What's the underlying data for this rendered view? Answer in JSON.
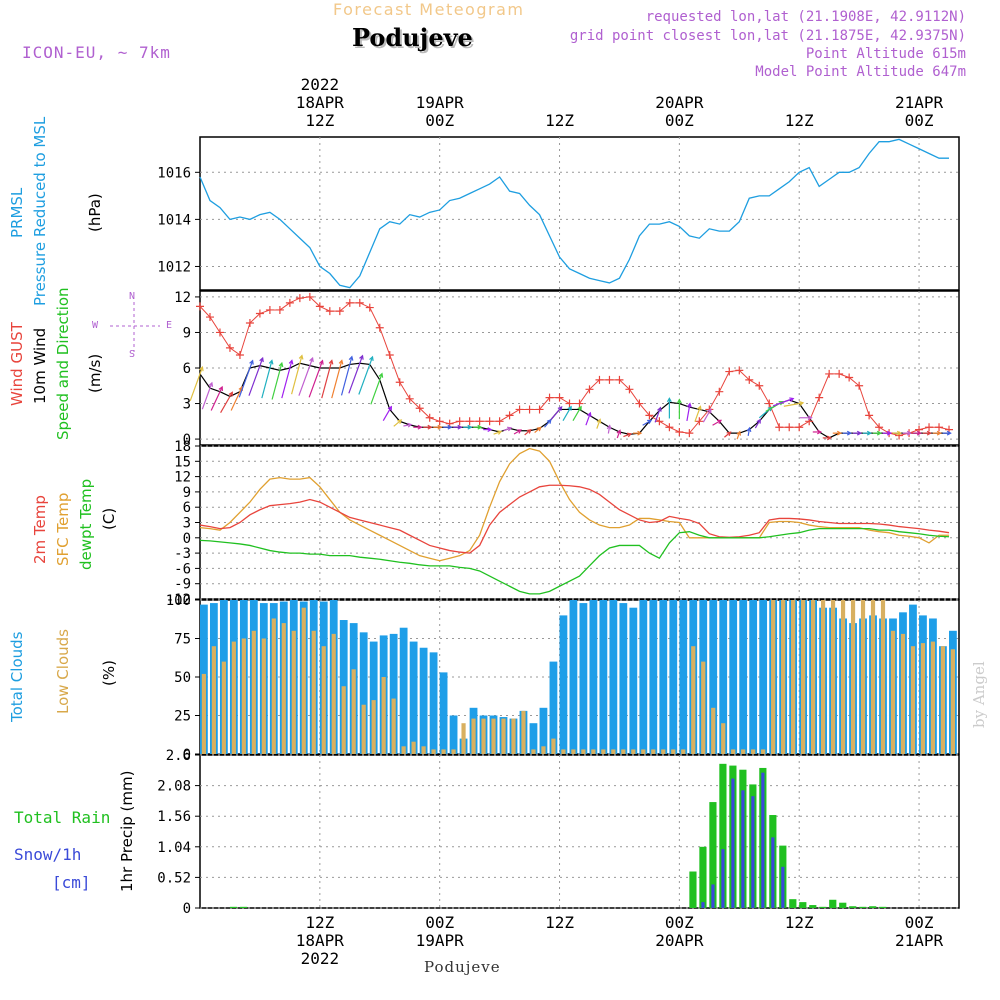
{
  "header": {
    "subtitle": "Forecast Meteogram",
    "location": "Podujeve",
    "model": "ICON-EU, ~ 7km",
    "requested": "requested lon,lat (21.1908E, 42.9112N)",
    "gridpoint": "grid point closest lon,lat (21.1875E, 42.9375N)",
    "point_alt": "Point Altitude 615m",
    "model_alt": "Model Point Altitude 647m",
    "footer_location": "Podujeve",
    "watermark": "by Angel"
  },
  "time_axis": {
    "top_labels": [
      {
        "t": 12,
        "lines": [
          "2022",
          "18APR",
          "12Z"
        ]
      },
      {
        "t": 24,
        "lines": [
          "19APR",
          "00Z"
        ]
      },
      {
        "t": 36,
        "lines": [
          "12Z"
        ]
      },
      {
        "t": 48,
        "lines": [
          "20APR",
          "00Z"
        ]
      },
      {
        "t": 60,
        "lines": [
          "12Z"
        ]
      },
      {
        "t": 72,
        "lines": [
          "21APR",
          "00Z"
        ]
      }
    ],
    "bottom_labels": [
      {
        "t": 12,
        "lines": [
          "12Z",
          "18APR",
          "2022"
        ]
      },
      {
        "t": 24,
        "lines": [
          "00Z",
          "19APR"
        ]
      },
      {
        "t": 36,
        "lines": [
          "12Z"
        ]
      },
      {
        "t": 48,
        "lines": [
          "00Z",
          "20APR"
        ]
      },
      {
        "t": 60,
        "lines": [
          "12Z"
        ]
      },
      {
        "t": 72,
        "lines": [
          "00Z",
          "21APR"
        ]
      }
    ]
  },
  "labels": {
    "pressure": [
      "PRMSL",
      "Pressure Reduced to MSL"
    ],
    "pressure_unit": "(hPa)",
    "wind": [
      "Wind GUST",
      "10m Wind",
      "Speed and Direction"
    ],
    "wind_unit": "(m/s)",
    "compass": {
      "n": "N",
      "s": "S",
      "e": "E",
      "w": "W"
    },
    "temp": [
      "2m Temp",
      "SFC Temp",
      "dewpt Temp"
    ],
    "temp_unit": "(C)",
    "clouds": [
      "Total Clouds",
      "Low Clouds"
    ],
    "clouds_unit": "(%)",
    "precip_left": [
      "Total  Rain",
      "Snow/1h",
      "[cm]"
    ],
    "precip_axis": "1hr Precip (mm)"
  },
  "colors": {
    "pressure": "#1e9ee0",
    "gust": "#e8443c",
    "wind": "#000000",
    "temp2m": "#e8443c",
    "sfctemp": "#e0a030",
    "dewpt": "#20c020",
    "total_clouds": "#1e9ee8",
    "low_clouds": "#d8b060",
    "rain": "#20c020",
    "snow": "#3a4ad8",
    "purple": "#b060d0",
    "orange_title": "#f2c88a"
  },
  "chart_data": [
    {
      "type": "line",
      "name": "pressure",
      "title": "PRMSL",
      "ylabel": "(hPa)",
      "ylim": [
        1011,
        1017.5
      ],
      "yticks": [
        1012,
        1014,
        1016
      ],
      "x": [
        0,
        1,
        2,
        3,
        4,
        5,
        6,
        7,
        8,
        9,
        10,
        11,
        12,
        13,
        14,
        15,
        16,
        17,
        18,
        19,
        20,
        21,
        22,
        23,
        24,
        25,
        26,
        27,
        28,
        29,
        30,
        31,
        32,
        33,
        34,
        35,
        36,
        37,
        38,
        39,
        40,
        41,
        42,
        43,
        44,
        45,
        46,
        47,
        48,
        49,
        50,
        51,
        52,
        53,
        54,
        55,
        56,
        57,
        58,
        59,
        60,
        61,
        62,
        63,
        64,
        65,
        66,
        67,
        68,
        69,
        70,
        71,
        72,
        73,
        74,
        75
      ],
      "values": [
        1015.8,
        1014.8,
        1014.5,
        1014.0,
        1014.1,
        1014.0,
        1014.2,
        1014.3,
        1014.0,
        1013.6,
        1013.2,
        1012.8,
        1012.0,
        1011.7,
        1011.2,
        1011.1,
        1011.6,
        1012.6,
        1013.6,
        1013.9,
        1013.8,
        1014.2,
        1014.1,
        1014.3,
        1014.4,
        1014.8,
        1014.9,
        1015.1,
        1015.3,
        1015.5,
        1015.8,
        1015.2,
        1015.1,
        1014.6,
        1014.2,
        1013.3,
        1012.4,
        1011.9,
        1011.7,
        1011.5,
        1011.4,
        1011.3,
        1011.5,
        1012.3,
        1013.3,
        1013.8,
        1013.8,
        1013.9,
        1013.7,
        1013.3,
        1013.2,
        1013.6,
        1013.5,
        1013.5,
        1013.9,
        1014.9,
        1015.0,
        1015.0,
        1015.3,
        1015.6,
        1016.0,
        1016.2,
        1015.4,
        1015.7,
        1016.0,
        1016.0,
        1016.2,
        1016.8,
        1017.3,
        1017.3,
        1017.4,
        1017.2,
        1017.0,
        1016.8,
        1016.6,
        1016.6
      ]
    },
    {
      "type": "line",
      "name": "wind",
      "title": "Wind GUST / 10m Wind",
      "ylabel": "(m/s)",
      "ylim": [
        -0.5,
        12.5
      ],
      "yticks": [
        0,
        3,
        6,
        9,
        12
      ],
      "x_gust": [
        0,
        1,
        2,
        3,
        4,
        5,
        6,
        7,
        8,
        9,
        10,
        11,
        12,
        13,
        14,
        15,
        16,
        17,
        18,
        19,
        20,
        21,
        22,
        23,
        24,
        25,
        26,
        27,
        28,
        29,
        30,
        31,
        32,
        33,
        34,
        35,
        36,
        37,
        38,
        39,
        40,
        41,
        42,
        43,
        44,
        45,
        46,
        47,
        48,
        49,
        50,
        51,
        52,
        53,
        54,
        55,
        56,
        57,
        58,
        59,
        60,
        61,
        62,
        63,
        64,
        65,
        66,
        67,
        68,
        69,
        70,
        71,
        72,
        73,
        74,
        75
      ],
      "gust": [
        11.2,
        10.3,
        9.0,
        7.7,
        7.1,
        9.8,
        10.6,
        10.9,
        10.9,
        11.5,
        11.9,
        12.0,
        11.2,
        10.8,
        10.8,
        11.5,
        11.5,
        11.1,
        9.4,
        7.1,
        4.8,
        3.4,
        2.6,
        1.8,
        1.5,
        1.3,
        1.5,
        1.5,
        1.5,
        1.5,
        1.5,
        2.0,
        2.5,
        2.5,
        2.5,
        3.5,
        3.5,
        3.0,
        3.0,
        4.2,
        5.0,
        5.0,
        5.0,
        4.2,
        3.0,
        2.0,
        1.5,
        1.0,
        0.6,
        0.5,
        1.5,
        2.5,
        4.0,
        5.7,
        5.8,
        5.0,
        4.5,
        3.0,
        1.0,
        1.0,
        1.0,
        1.5,
        3.5,
        5.5,
        5.5,
        5.2,
        4.5,
        2.0,
        1.0,
        0.5,
        0.3,
        0.5,
        0.8,
        1.0,
        1.0,
        0.8
      ],
      "wind": [
        5.5,
        4.3,
        4.0,
        3.6,
        4.0,
        6.0,
        6.2,
        6.0,
        5.8,
        6.0,
        6.4,
        6.2,
        6.0,
        6.0,
        6.0,
        6.3,
        6.4,
        6.3,
        5.0,
        2.5,
        1.5,
        1.2,
        1.0,
        1.0,
        1.0,
        1.0,
        1.0,
        1.0,
        1.0,
        0.8,
        0.6,
        0.9,
        0.7,
        0.7,
        0.9,
        1.5,
        2.5,
        2.5,
        2.5,
        2.0,
        1.5,
        1.0,
        0.6,
        0.4,
        0.5,
        1.5,
        2.4,
        3.1,
        3.0,
        2.7,
        2.5,
        2.3,
        1.5,
        0.5,
        0.5,
        0.8,
        1.5,
        2.5,
        3.0,
        3.3,
        3.0,
        1.8,
        0.6,
        0.1,
        0.5,
        0.5,
        0.5,
        0.5,
        0.5,
        0.5,
        0.5,
        0.5,
        0.5,
        0.5,
        0.5,
        0.5
      ],
      "arrow_dir_deg": [
        200,
        200,
        205,
        210,
        205,
        200,
        200,
        195,
        195,
        195,
        195,
        200,
        200,
        195,
        195,
        195,
        200,
        200,
        200,
        210,
        230,
        260,
        270,
        270,
        270,
        270,
        270,
        270,
        270,
        270,
        250,
        250,
        240,
        230,
        230,
        220,
        220,
        210,
        210,
        200,
        200,
        190,
        200,
        250,
        270,
        240,
        200,
        180,
        180,
        190,
        200,
        210,
        240,
        230,
        200,
        190,
        210,
        230,
        240,
        250,
        260,
        270,
        270,
        270,
        270,
        270,
        270,
        270,
        270,
        270,
        270,
        270,
        270,
        270,
        270,
        270
      ]
    },
    {
      "type": "line",
      "name": "temperature",
      "title": "2m Temp / SFC Temp / dewpt Temp",
      "ylabel": "(C)",
      "ylim": [
        -12,
        18
      ],
      "yticks": [
        -12,
        -9,
        -6,
        -3,
        0,
        3,
        6,
        9,
        12,
        15,
        18
      ],
      "x": [
        0,
        1,
        2,
        3,
        4,
        5,
        6,
        7,
        8,
        9,
        10,
        11,
        12,
        13,
        14,
        15,
        16,
        17,
        18,
        19,
        20,
        21,
        22,
        23,
        24,
        25,
        26,
        27,
        28,
        29,
        30,
        31,
        32,
        33,
        34,
        35,
        36,
        37,
        38,
        39,
        40,
        41,
        42,
        43,
        44,
        45,
        46,
        47,
        48,
        49,
        50,
        51,
        52,
        53,
        54,
        55,
        56,
        57,
        58,
        59,
        60,
        61,
        62,
        63,
        64,
        65,
        66,
        67,
        68,
        69,
        70,
        71,
        72,
        73,
        74,
        75
      ],
      "temp2m": [
        2.5,
        2.2,
        1.8,
        2.0,
        3.0,
        4.5,
        5.5,
        6.3,
        6.5,
        6.7,
        7.0,
        7.5,
        7.0,
        6.0,
        5.0,
        4.0,
        3.5,
        3.0,
        2.5,
        2.0,
        1.5,
        0.5,
        -0.5,
        -1.5,
        -2.0,
        -2.5,
        -2.8,
        -3.0,
        -1.5,
        2.5,
        5.0,
        6.5,
        8.0,
        9.0,
        10.0,
        10.3,
        10.3,
        10.2,
        10.0,
        9.5,
        8.5,
        7.0,
        5.5,
        4.5,
        3.5,
        3.0,
        3.2,
        4.2,
        3.8,
        3.5,
        2.8,
        0.8,
        0.2,
        0.1,
        0.2,
        0.5,
        1.0,
        3.5,
        3.8,
        3.8,
        3.7,
        3.5,
        3.2,
        3.0,
        2.8,
        2.8,
        2.8,
        2.8,
        2.7,
        2.5,
        2.2,
        2.0,
        1.8,
        1.5,
        1.3,
        1.0
      ],
      "sfctemp": [
        2.0,
        1.8,
        1.5,
        3.0,
        5.0,
        7.0,
        9.5,
        11.5,
        11.8,
        11.5,
        11.5,
        11.8,
        10.0,
        7.5,
        5.0,
        3.5,
        2.5,
        1.5,
        0.5,
        -0.5,
        -1.5,
        -2.5,
        -3.5,
        -4.0,
        -4.5,
        -4.0,
        -3.5,
        -2.5,
        0.5,
        6.0,
        11.0,
        14.5,
        16.5,
        17.5,
        17.0,
        15.0,
        11.0,
        7.5,
        5.0,
        3.5,
        2.5,
        2.0,
        2.0,
        2.5,
        3.8,
        3.8,
        3.5,
        3.2,
        3.0,
        0.0,
        0.0,
        0.0,
        0.0,
        0.0,
        0.0,
        0.0,
        0.0,
        3.0,
        3.2,
        3.2,
        3.0,
        2.5,
        2.2,
        2.0,
        2.0,
        2.0,
        2.0,
        1.5,
        1.2,
        1.0,
        0.5,
        0.3,
        0.0,
        -1.0,
        0.5,
        0.5
      ],
      "dewpt": [
        -0.5,
        -0.6,
        -0.8,
        -1.0,
        -1.2,
        -1.5,
        -2.0,
        -2.5,
        -2.8,
        -3.0,
        -3.0,
        -3.2,
        -3.2,
        -3.5,
        -3.5,
        -3.5,
        -3.8,
        -4.0,
        -4.2,
        -4.5,
        -4.8,
        -5.0,
        -5.3,
        -5.5,
        -5.5,
        -5.5,
        -5.8,
        -6.0,
        -6.5,
        -7.5,
        -8.5,
        -9.5,
        -10.5,
        -11.0,
        -11.0,
        -10.5,
        -9.5,
        -8.5,
        -7.5,
        -5.5,
        -3.5,
        -2.0,
        -1.5,
        -1.5,
        -1.5,
        -3.0,
        -4.0,
        -1.0,
        1.0,
        1.2,
        0.5,
        0.0,
        0.0,
        0.0,
        0.0,
        0.0,
        0.0,
        0.2,
        0.5,
        0.8,
        1.0,
        1.5,
        1.8,
        1.8,
        1.8,
        1.8,
        1.8,
        1.8,
        1.5,
        1.5,
        1.2,
        1.0,
        0.8,
        0.5,
        0.3,
        0.2
      ]
    },
    {
      "type": "bar",
      "name": "clouds",
      "title": "Total Clouds / Low Clouds",
      "ylabel": "(%)",
      "ylim": [
        0,
        100
      ],
      "yticks": [
        0,
        25,
        50,
        75,
        100
      ],
      "x": [
        0,
        1,
        2,
        3,
        4,
        5,
        6,
        7,
        8,
        9,
        10,
        11,
        12,
        13,
        14,
        15,
        16,
        17,
        18,
        19,
        20,
        21,
        22,
        23,
        24,
        25,
        26,
        27,
        28,
        29,
        30,
        31,
        32,
        33,
        34,
        35,
        36,
        37,
        38,
        39,
        40,
        41,
        42,
        43,
        44,
        45,
        46,
        47,
        48,
        49,
        50,
        51,
        52,
        53,
        54,
        55,
        56,
        57,
        58,
        59,
        60,
        61,
        62,
        63,
        64,
        65,
        66,
        67,
        68,
        69,
        70,
        71,
        72,
        73,
        74,
        75
      ],
      "total": [
        97,
        98,
        100,
        100,
        100,
        100,
        98,
        98,
        99,
        100,
        99,
        100,
        99,
        100,
        87,
        85,
        79,
        73,
        77,
        78,
        82,
        73,
        69,
        66,
        53,
        25,
        10,
        30,
        25,
        25,
        24,
        23,
        28,
        20,
        30,
        60,
        90,
        100,
        98,
        100,
        100,
        100,
        98,
        95,
        100,
        100,
        100,
        100,
        100,
        100,
        100,
        100,
        100,
        100,
        100,
        100,
        100,
        100,
        100,
        100,
        100,
        100,
        95,
        95,
        88,
        85,
        88,
        90,
        88,
        88,
        92,
        97,
        90,
        88,
        70,
        80
      ],
      "low": [
        52,
        70,
        60,
        73,
        75,
        80,
        75,
        88,
        85,
        80,
        95,
        80,
        70,
        78,
        44,
        55,
        32,
        35,
        50,
        36,
        5,
        8,
        5,
        3,
        3,
        3,
        20,
        23,
        23,
        23,
        23,
        23,
        28,
        3,
        5,
        10,
        3,
        3,
        3,
        3,
        3,
        3,
        3,
        3,
        3,
        3,
        3,
        3,
        3,
        70,
        60,
        30,
        20,
        3,
        3,
        3,
        3,
        100,
        100,
        100,
        100,
        100,
        100,
        100,
        100,
        100,
        100,
        100,
        100,
        80,
        78,
        70,
        72,
        73,
        70,
        68
      ]
    },
    {
      "type": "bar",
      "name": "precipitation",
      "title": "1hr Precip (mm)",
      "ylabel": "1hr Precip (mm)",
      "ylim": [
        0,
        2.6
      ],
      "yticks": [
        0,
        0.52,
        1.04,
        1.56,
        2.08,
        2.6
      ],
      "x": [
        0,
        1,
        2,
        3,
        4,
        5,
        6,
        7,
        8,
        9,
        10,
        11,
        12,
        13,
        14,
        15,
        16,
        17,
        18,
        19,
        20,
        21,
        22,
        23,
        24,
        25,
        26,
        27,
        28,
        29,
        30,
        31,
        32,
        33,
        34,
        35,
        36,
        37,
        38,
        39,
        40,
        41,
        42,
        43,
        44,
        45,
        46,
        47,
        48,
        49,
        50,
        51,
        52,
        53,
        54,
        55,
        56,
        57,
        58,
        59,
        60,
        61,
        62,
        63,
        64,
        65,
        66,
        67,
        68,
        69,
        70,
        71,
        72,
        73,
        74,
        75
      ],
      "rain": [
        0,
        0,
        0,
        0.02,
        0.02,
        0,
        0,
        0,
        0,
        0,
        0,
        0,
        0,
        0,
        0,
        0,
        0,
        0,
        0,
        0,
        0,
        0,
        0,
        0,
        0,
        0,
        0,
        0,
        0,
        0,
        0,
        0,
        0,
        0,
        0,
        0,
        0,
        0,
        0,
        0,
        0,
        0,
        0,
        0,
        0,
        0,
        0,
        0,
        0,
        0.62,
        1.04,
        1.8,
        2.45,
        2.42,
        2.35,
        2.1,
        2.38,
        1.58,
        1.06,
        0.15,
        0.1,
        0.05,
        0.02,
        0.14,
        0.09,
        0.03,
        0.02,
        0.03,
        0.02,
        0,
        0,
        0,
        0,
        0,
        0,
        0
      ],
      "snow": [
        0,
        0,
        0,
        0,
        0,
        0,
        0,
        0,
        0,
        0,
        0,
        0,
        0,
        0,
        0,
        0,
        0,
        0,
        0,
        0,
        0,
        0,
        0,
        0,
        0,
        0,
        0,
        0,
        0,
        0,
        0,
        0,
        0,
        0,
        0,
        0,
        0,
        0,
        0,
        0,
        0,
        0,
        0,
        0,
        0,
        0,
        0,
        0,
        0,
        0,
        0.1,
        0.4,
        1.0,
        2.2,
        2.0,
        1.9,
        2.3,
        1.2,
        0.7,
        0,
        0,
        0,
        0,
        0,
        0,
        0,
        0,
        0,
        0,
        0,
        0,
        0,
        0,
        0,
        0,
        0
      ]
    }
  ]
}
